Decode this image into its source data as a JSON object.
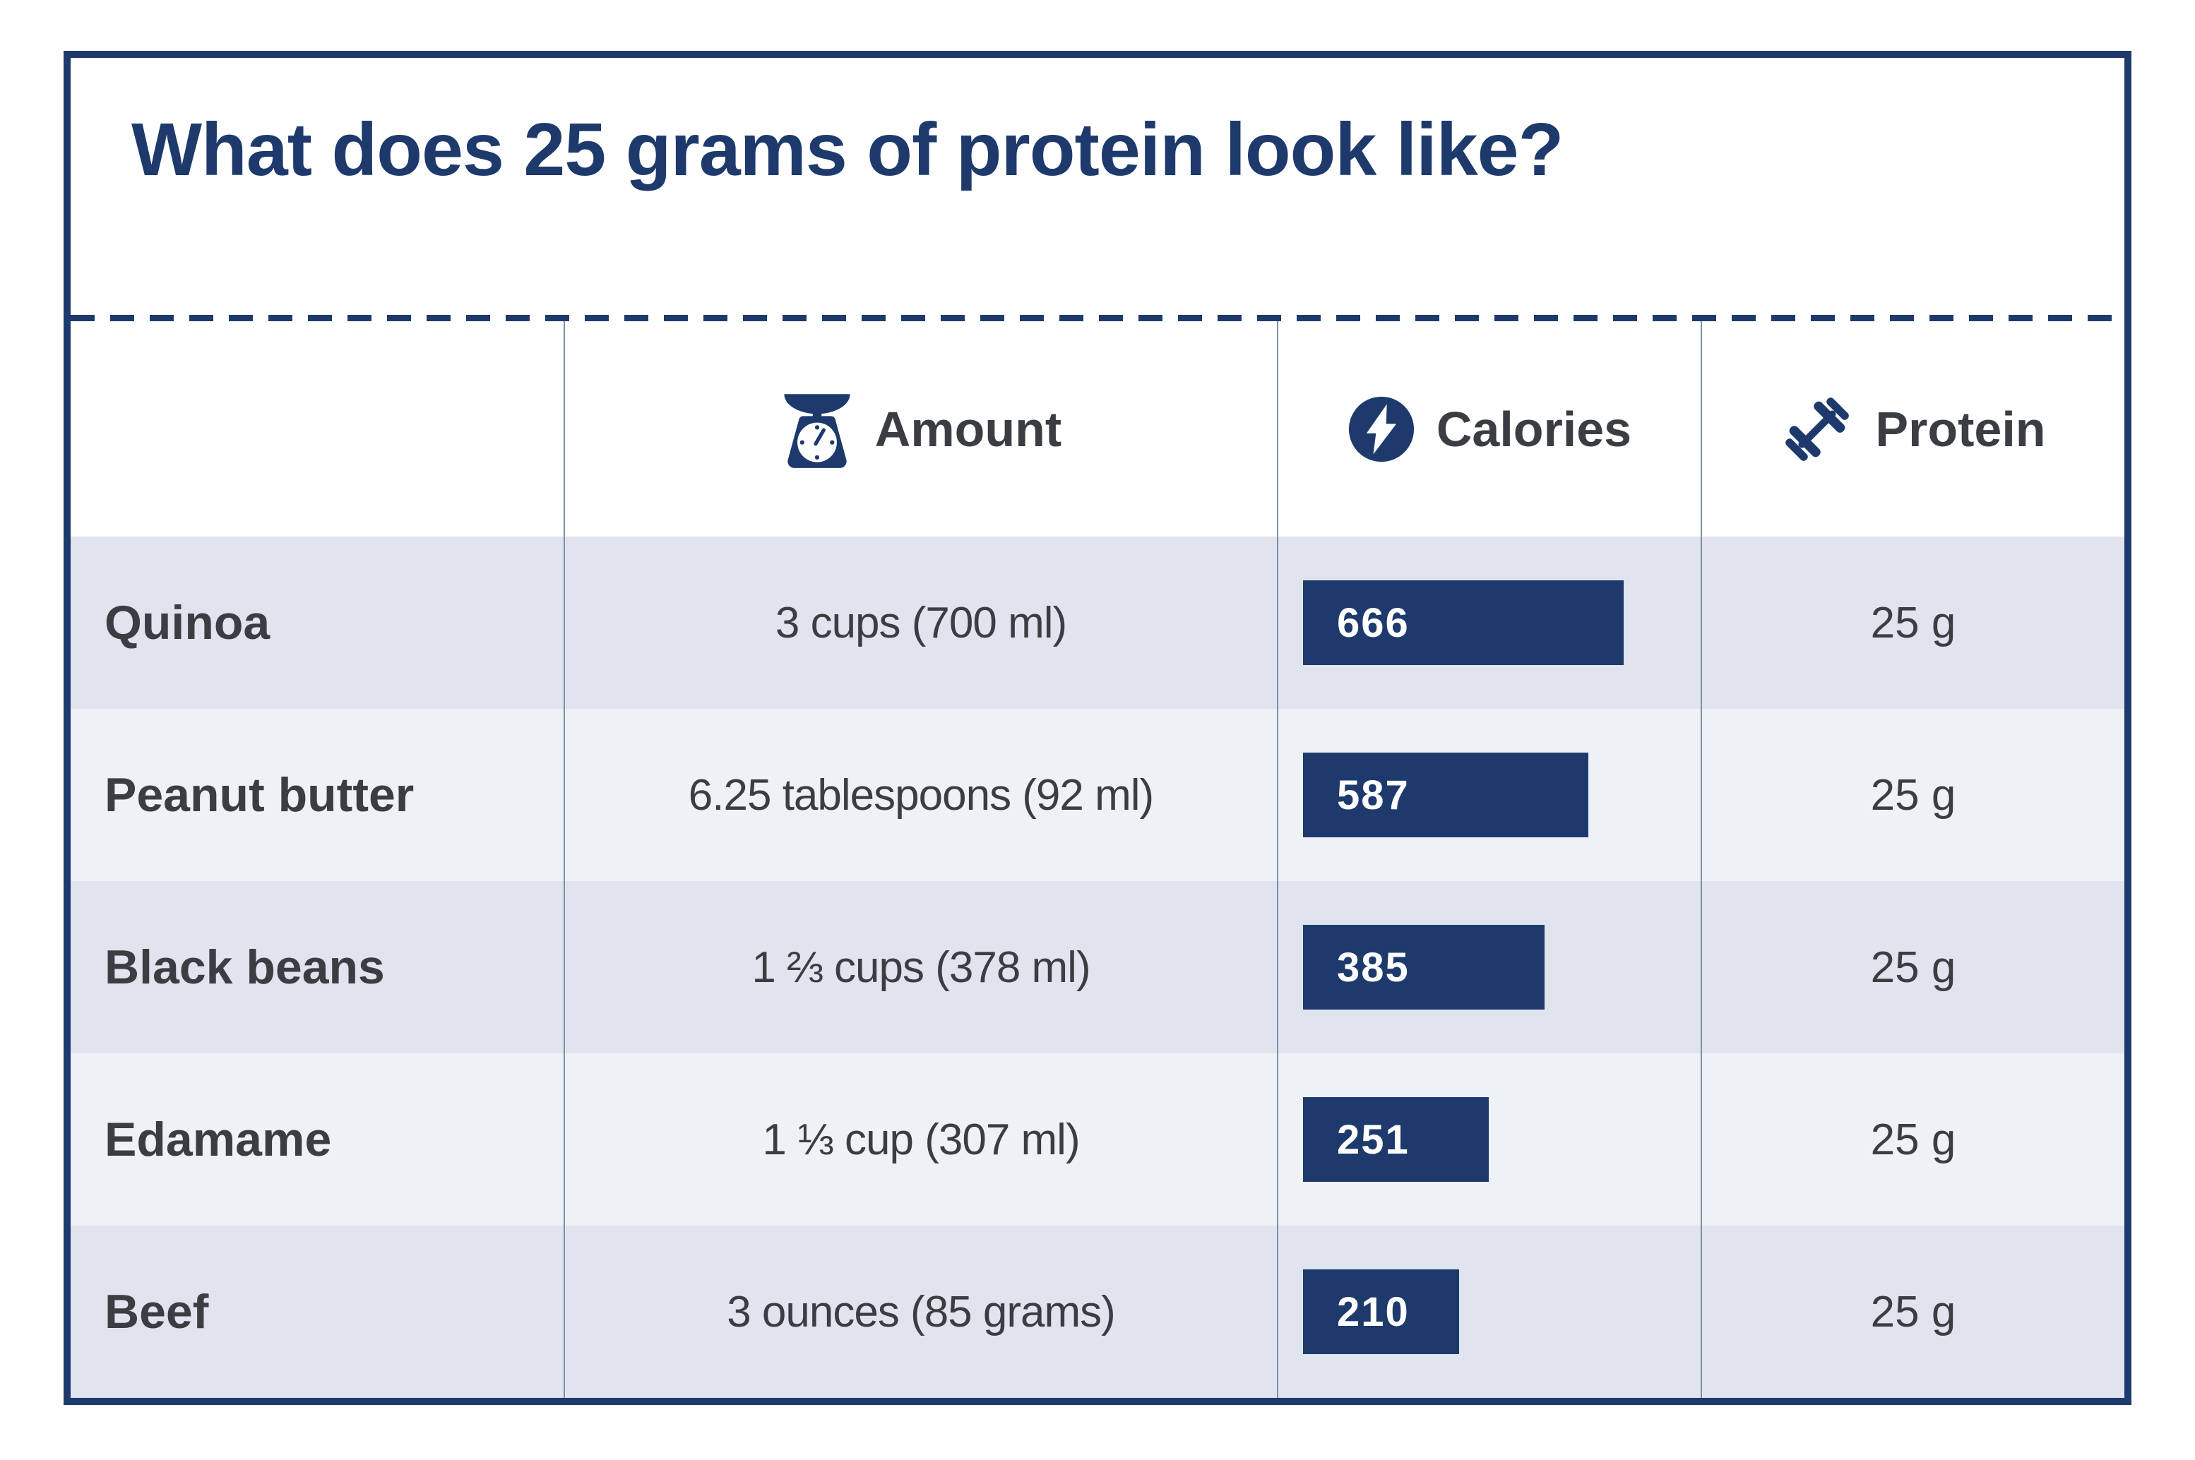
{
  "title": "What does 25 grams of protein look like?",
  "colors": {
    "navy": "#1e3a6d",
    "text": "#3a3e42",
    "row_dark": "#dfe4ee",
    "row_light": "#eef1f6",
    "divider": "#7d90a6",
    "white": "#ffffff"
  },
  "header": {
    "amount": {
      "label": "Amount",
      "icon": "kitchen-scale-icon"
    },
    "calories": {
      "label": "Calories",
      "icon": "lightning-bolt-icon"
    },
    "protein": {
      "label": "Protein",
      "icon": "dumbbell-icon"
    }
  },
  "rows": [
    {
      "name": "Quinoa",
      "amount": "3 cups (700 ml)",
      "calories": "666",
      "protein": "25 g"
    },
    {
      "name": "Peanut butter",
      "amount": "6.25 tablespoons (92 ml)",
      "calories": "587",
      "protein": "25 g"
    },
    {
      "name": "Black beans",
      "amount": "1 ⅔ cups (378 ml)",
      "calories": "385",
      "protein": "25 g"
    },
    {
      "name": "Edamame",
      "amount": "1 ⅓ cup (307 ml)",
      "calories": "251",
      "protein": "25 g"
    },
    {
      "name": "Beef",
      "amount": "3 ounces (85 grams)",
      "calories": "210",
      "protein": "25 g"
    }
  ],
  "chart_data": {
    "type": "bar",
    "orientation": "horizontal",
    "title": "What does 25 grams of protein look like?",
    "categories": [
      "Quinoa",
      "Peanut butter",
      "Black beans",
      "Edamame",
      "Beef"
    ],
    "values": [
      666,
      587,
      385,
      251,
      210
    ],
    "series_label": "Calories",
    "amounts": [
      "3 cups (700 ml)",
      "6.25 tablespoons (92 ml)",
      "1 ⅔ cups (378 ml)",
      "1 ⅓ cup (307 ml)",
      "3 ounces (85 grams)"
    ],
    "protein_values": [
      "25 g",
      "25 g",
      "25 g",
      "25 g",
      "25 g"
    ],
    "bar_color": "#1e3a6d",
    "bar_width_pct": [
      80.7,
      71.7,
      60.7,
      46.8,
      39.2
    ],
    "grid": false,
    "legend": "none",
    "data_labels": "inside-bar-left"
  }
}
